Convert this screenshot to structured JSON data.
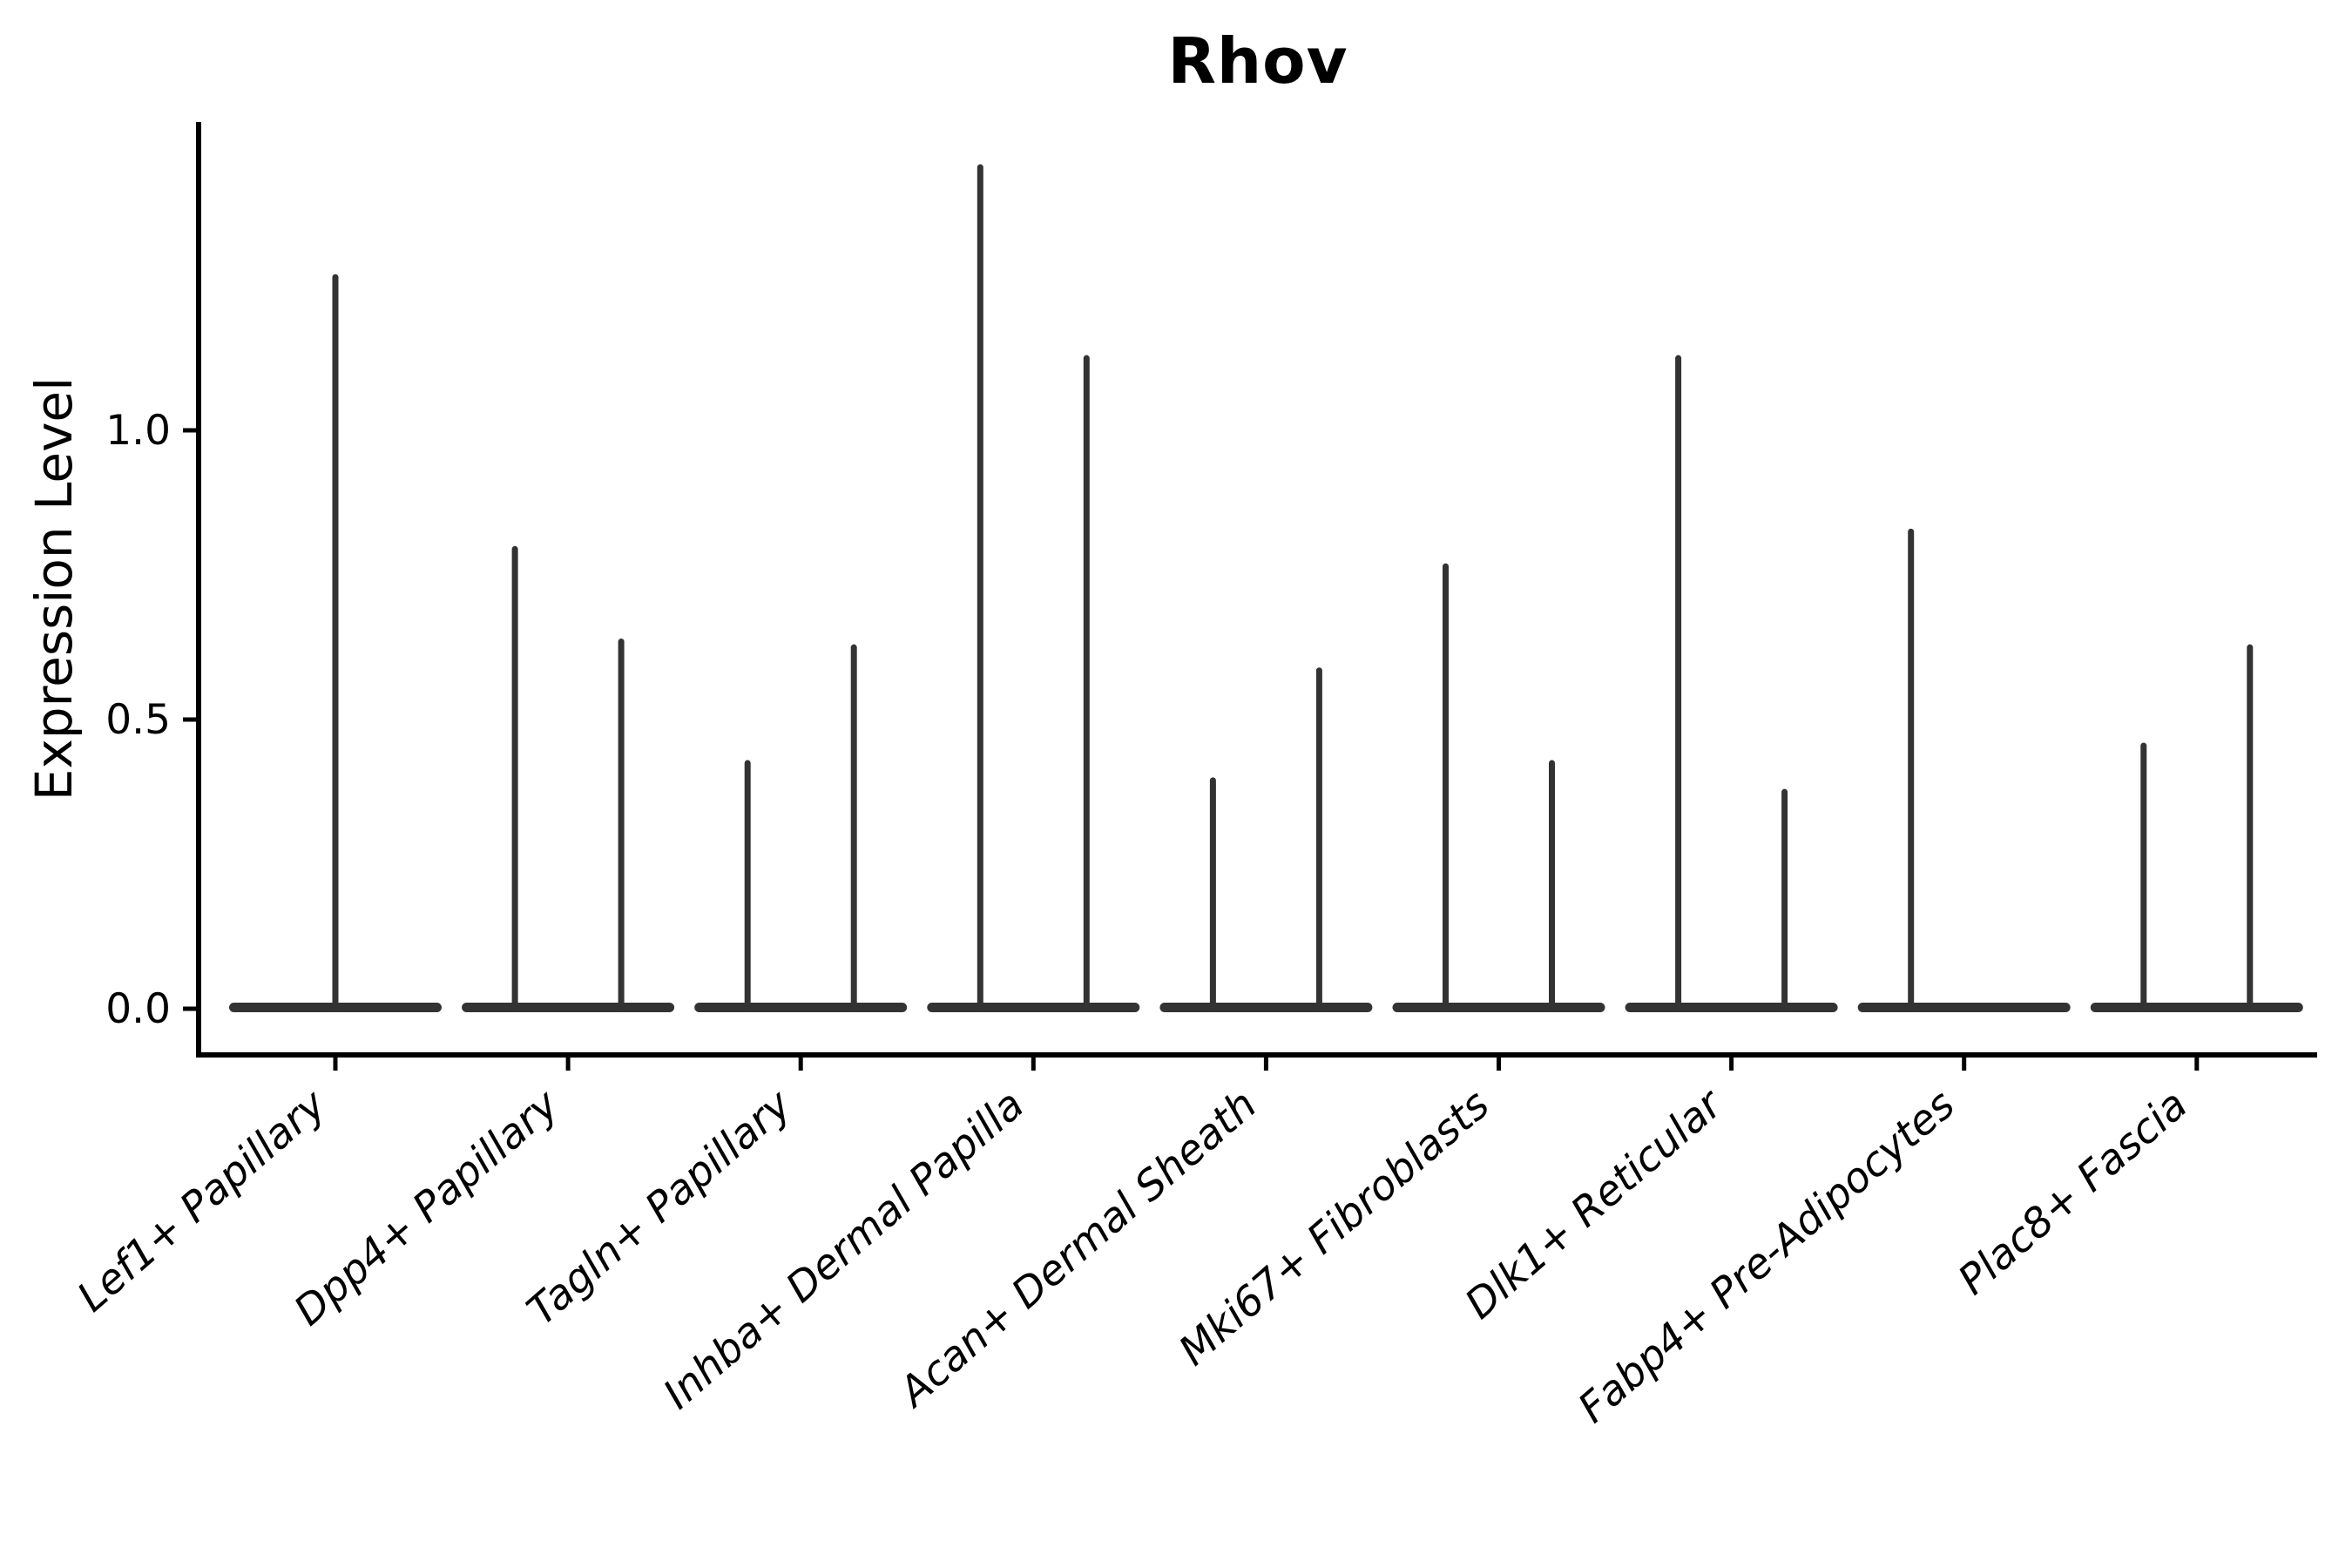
{
  "chart_data": {
    "type": "violin",
    "title": "Rhov",
    "ylabel": "Expression Level",
    "xlabel": "",
    "ytick_labels": [
      "0.0",
      "0.5",
      "1.0"
    ],
    "ytick_values": [
      0.0,
      0.5,
      1.0
    ],
    "ylim": [
      -0.08,
      1.53
    ],
    "grid": false,
    "legend": null,
    "baseline_value": 0.0,
    "violin_color": "#333333",
    "axis_color": "#000000",
    "categories": [
      "Lef1+ Papillary",
      "Dpp4+ Papillary",
      "Tagln+ Papillary",
      "Inhba+ Dermal Papilla",
      "Acan+ Dermal Sheath",
      "Mki67+ Fibroblasts",
      "Dlk1+ Reticular",
      "Fabp4+ Pre-Adipocytes",
      "Plac8+ Fascia"
    ],
    "series": [
      {
        "category": "Lef1+ Papillary",
        "violin_max": [
          1.27
        ]
      },
      {
        "category": "Dpp4+ Papillary",
        "violin_max": [
          0.8,
          0.64
        ]
      },
      {
        "category": "Tagln+ Papillary",
        "violin_max": [
          0.43,
          0.63
        ]
      },
      {
        "category": "Inhba+ Dermal Papilla",
        "violin_max": [
          1.46,
          1.13
        ]
      },
      {
        "category": "Acan+ Dermal Sheath",
        "violin_max": [
          0.4,
          0.59
        ]
      },
      {
        "category": "Mki67+ Fibroblasts",
        "violin_max": [
          0.77,
          0.43
        ]
      },
      {
        "category": "Dlk1+ Reticular",
        "violin_max": [
          1.13,
          0.38
        ]
      },
      {
        "category": "Fabp4+ Pre-Adipocytes",
        "violin_max": [
          0.83,
          0.0
        ]
      },
      {
        "category": "Plac8+ Fascia",
        "violin_max": [
          0.46,
          0.63
        ]
      }
    ]
  }
}
